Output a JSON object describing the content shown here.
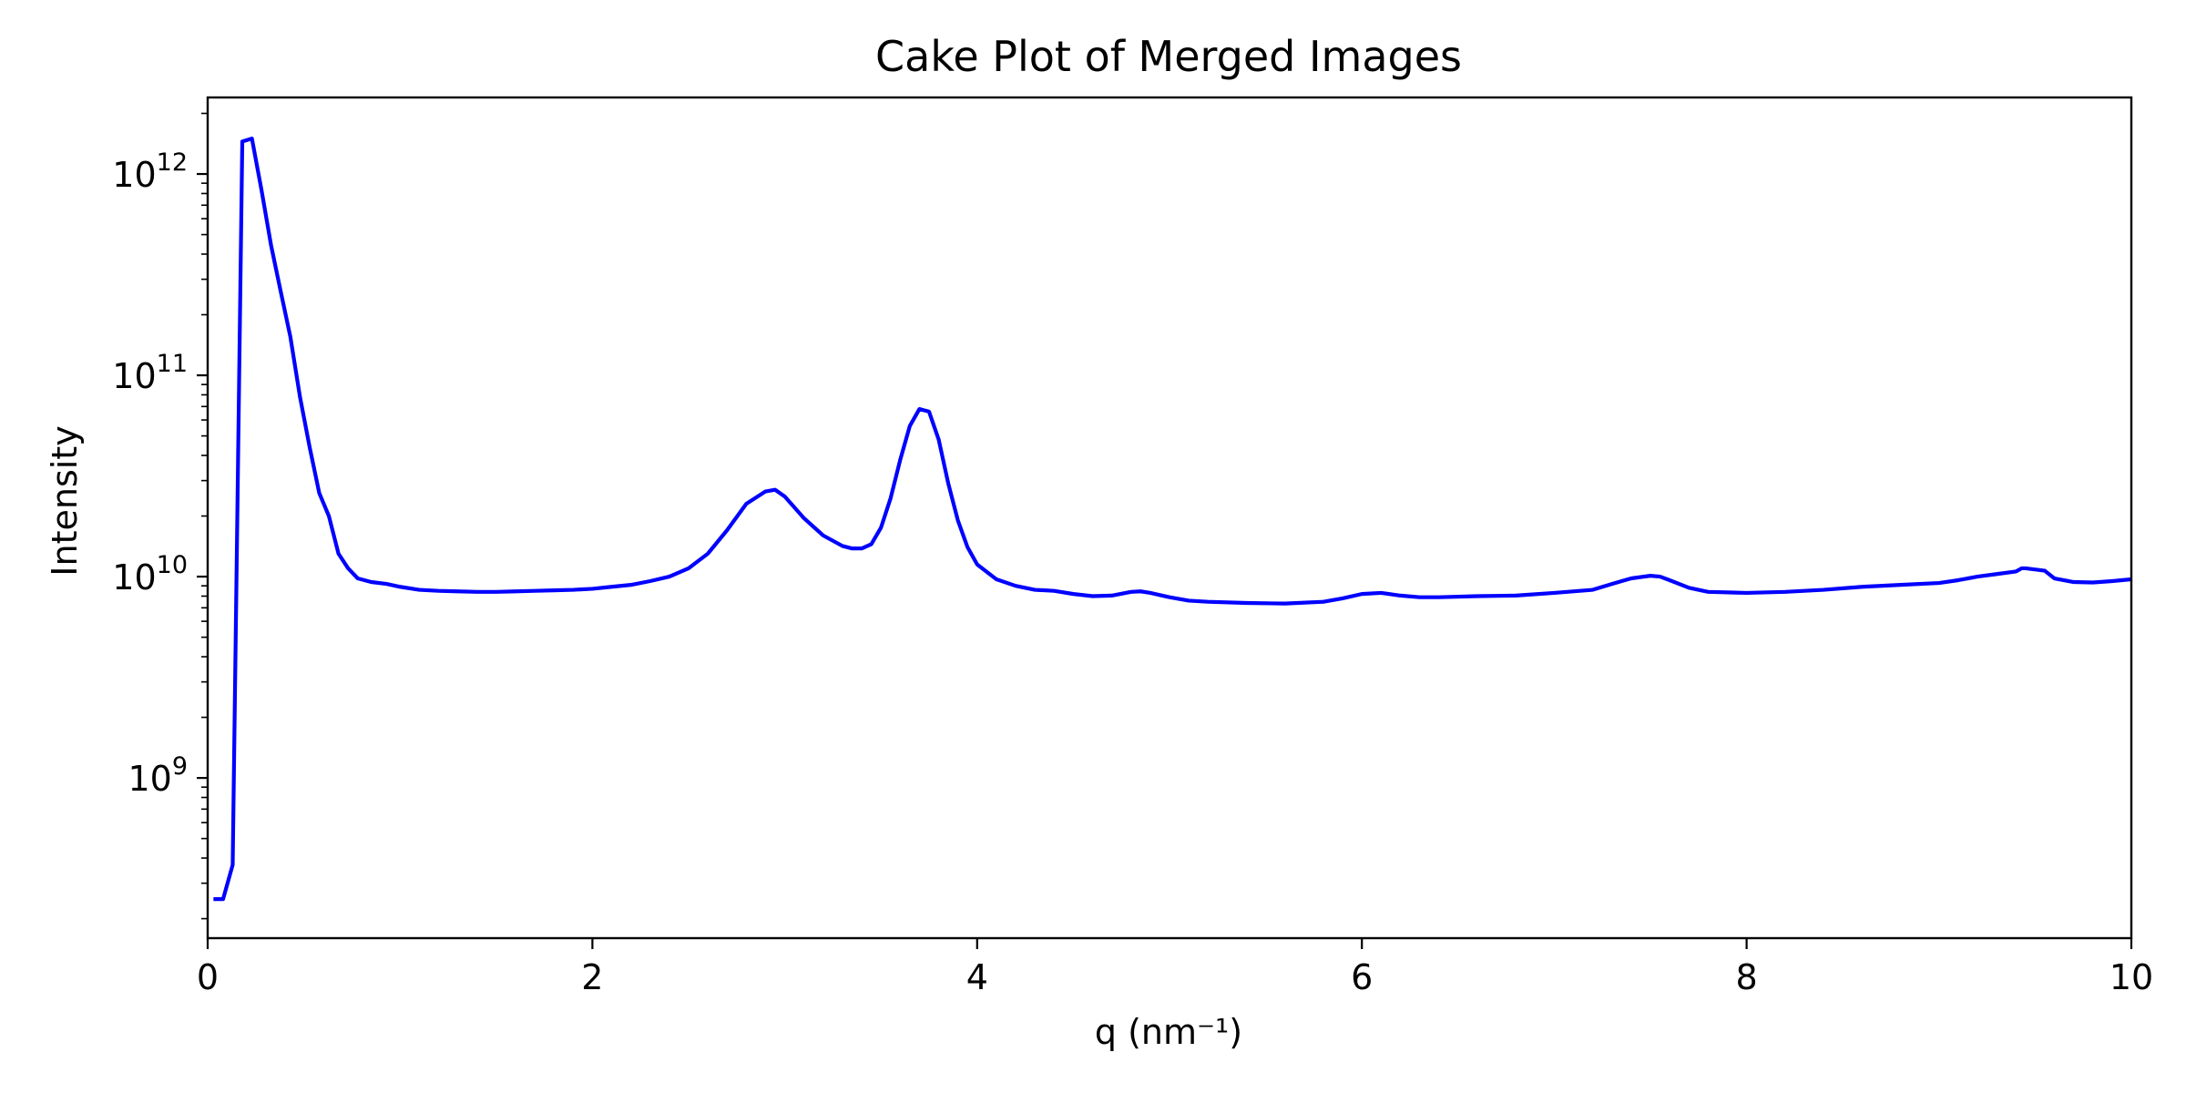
{
  "chart_data": {
    "type": "line",
    "title": "Cake Plot of Merged Images",
    "xlabel": "q (nm⁻¹)",
    "ylabel": "Intensity",
    "xlim": [
      0,
      10
    ],
    "ylim": [
      160000000.0,
      2400000000000.0
    ],
    "yscale": "log",
    "grid": false,
    "legend": "none",
    "x_ticks": [
      {
        "value": 0,
        "label": "0"
      },
      {
        "value": 2,
        "label": "2"
      },
      {
        "value": 4,
        "label": "4"
      },
      {
        "value": 6,
        "label": "6"
      },
      {
        "value": 8,
        "label": "8"
      },
      {
        "value": 10,
        "label": "10"
      }
    ],
    "y_ticks": [
      {
        "value": 1000000000.0,
        "base": "10",
        "exp": "9"
      },
      {
        "value": 10000000000.0,
        "base": "10",
        "exp": "10"
      },
      {
        "value": 100000000000.0,
        "base": "10",
        "exp": "11"
      },
      {
        "value": 1000000000000.0,
        "base": "10",
        "exp": "12"
      }
    ],
    "series": [
      {
        "color": "#0000ff",
        "x": [
          0.03,
          0.08,
          0.13,
          0.18,
          0.23,
          0.28,
          0.33,
          0.38,
          0.43,
          0.48,
          0.53,
          0.58,
          0.63,
          0.68,
          0.73,
          0.78,
          0.85,
          0.93,
          1.0,
          1.1,
          1.2,
          1.3,
          1.4,
          1.5,
          1.6,
          1.7,
          1.8,
          1.9,
          2.0,
          2.1,
          2.2,
          2.3,
          2.4,
          2.5,
          2.6,
          2.7,
          2.8,
          2.9,
          2.95,
          3.0,
          3.1,
          3.2,
          3.3,
          3.35,
          3.4,
          3.45,
          3.5,
          3.55,
          3.6,
          3.65,
          3.7,
          3.75,
          3.8,
          3.85,
          3.9,
          3.95,
          4.0,
          4.1,
          4.2,
          4.3,
          4.4,
          4.5,
          4.6,
          4.7,
          4.8,
          4.85,
          4.9,
          5.0,
          5.1,
          5.2,
          5.4,
          5.6,
          5.8,
          5.9,
          6.0,
          6.1,
          6.2,
          6.3,
          6.4,
          6.6,
          6.8,
          7.0,
          7.2,
          7.3,
          7.4,
          7.5,
          7.55,
          7.6,
          7.7,
          7.8,
          8.0,
          8.2,
          8.4,
          8.6,
          8.8,
          9.0,
          9.1,
          9.2,
          9.3,
          9.4,
          9.43,
          9.45,
          9.55,
          9.6,
          9.7,
          9.8,
          9.9,
          10.0
        ],
        "y": [
          250000000.0,
          250000000.0,
          370000000.0,
          1450000000000.0,
          1500000000000.0,
          830000000000.0,
          440000000000.0,
          260000000000.0,
          155000000000.0,
          78000000000.0,
          44000000000.0,
          26000000000.0,
          20000000000.0,
          13000000000.0,
          11000000000.0,
          9800000000.0,
          9400000000.0,
          9200000000.0,
          8900000000.0,
          8600000000.0,
          8500000000.0,
          8450000000.0,
          8400000000.0,
          8400000000.0,
          8450000000.0,
          8500000000.0,
          8550000000.0,
          8600000000.0,
          8700000000.0,
          8900000000.0,
          9100000000.0,
          9500000000.0,
          10000000000.0,
          11000000000.0,
          13000000000.0,
          17000000000.0,
          23000000000.0,
          26500000000.0,
          27000000000.0,
          25000000000.0,
          19500000000.0,
          16000000000.0,
          14200000000.0,
          13800000000.0,
          13800000000.0,
          14500000000.0,
          17500000000.0,
          24500000000.0,
          38000000000.0,
          56000000000.0,
          68000000000.0,
          66000000000.0,
          48000000000.0,
          29000000000.0,
          19000000000.0,
          14000000000.0,
          11500000000.0,
          9700000000.0,
          9000000000.0,
          8600000000.0,
          8500000000.0,
          8200000000.0,
          8000000000.0,
          8050000000.0,
          8400000000.0,
          8450000000.0,
          8300000000.0,
          7900000000.0,
          7600000000.0,
          7500000000.0,
          7400000000.0,
          7350000000.0,
          7500000000.0,
          7800000000.0,
          8200000000.0,
          8300000000.0,
          8050000000.0,
          7900000000.0,
          7900000000.0,
          8000000000.0,
          8050000000.0,
          8300000000.0,
          8600000000.0,
          9200000000.0,
          9800000000.0,
          10100000000.0,
          10000000000.0,
          9600000000.0,
          8800000000.0,
          8400000000.0,
          8300000000.0,
          8400000000.0,
          8600000000.0,
          8900000000.0,
          9100000000.0,
          9300000000.0,
          9600000000.0,
          10000000000.0,
          10300000000.0,
          10600000000.0,
          11000000000.0,
          11000000000.0,
          10700000000.0,
          9800000000.0,
          9400000000.0,
          9350000000.0,
          9500000000.0,
          9700000000.0
        ]
      }
    ]
  }
}
